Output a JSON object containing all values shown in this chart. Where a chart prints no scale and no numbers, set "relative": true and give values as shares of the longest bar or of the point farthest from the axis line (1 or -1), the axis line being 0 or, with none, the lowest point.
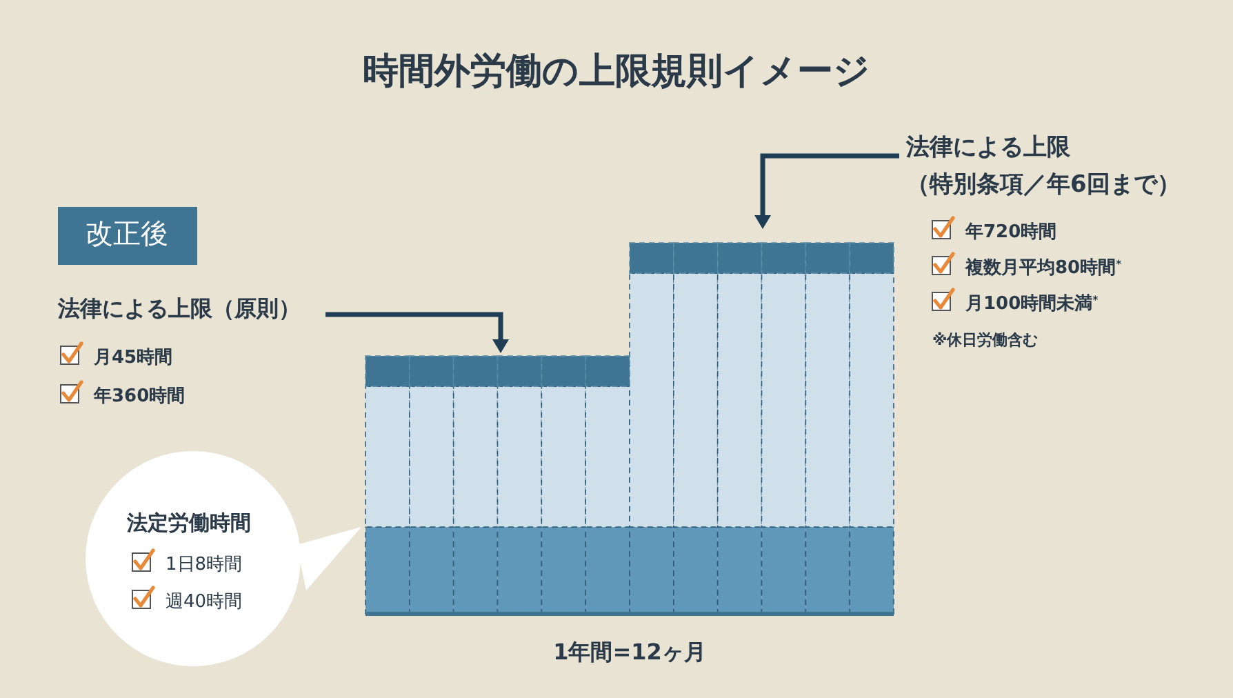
{
  "chart_data": {
    "type": "bar",
    "title": "時間外労働の上限規則イメージ",
    "xlabel": "1年間=12ヶ月",
    "categories": [
      null,
      null,
      null,
      null,
      null,
      null,
      null,
      null,
      null,
      null,
      null,
      null
    ],
    "stacked": true,
    "relative": true,
    "series": [
      {
        "color": "#5f98b8",
        "values": [
          0.234,
          0.234,
          0.234,
          0.234,
          0.234,
          0.234,
          0.234,
          0.234,
          0.234,
          0.234,
          0.234,
          0.234
        ]
      },
      {
        "color": "#cfe0eb",
        "values": [
          0.379,
          0.379,
          0.379,
          0.379,
          0.379,
          0.379,
          0.684,
          0.684,
          0.684,
          0.684,
          0.684,
          0.684
        ]
      },
      {
        "color": "#3f7592",
        "values": [
          0.082,
          0.082,
          0.082,
          0.082,
          0.082,
          0.082,
          0.082,
          0.082,
          0.082,
          0.082,
          0.082,
          0.082
        ]
      }
    ],
    "annotations": [
      "改正後",
      "法律による上限（原則）",
      "月45時間",
      "年360時間",
      "法律による上限",
      "（特別条項／年6回まで）",
      "年720時間",
      "複数月平均80時間$^{*}$",
      "月100時間未満$^{*}$",
      "※休日労働含む",
      "法定労働時間",
      "1日8時間",
      "週40時間"
    ]
  }
}
